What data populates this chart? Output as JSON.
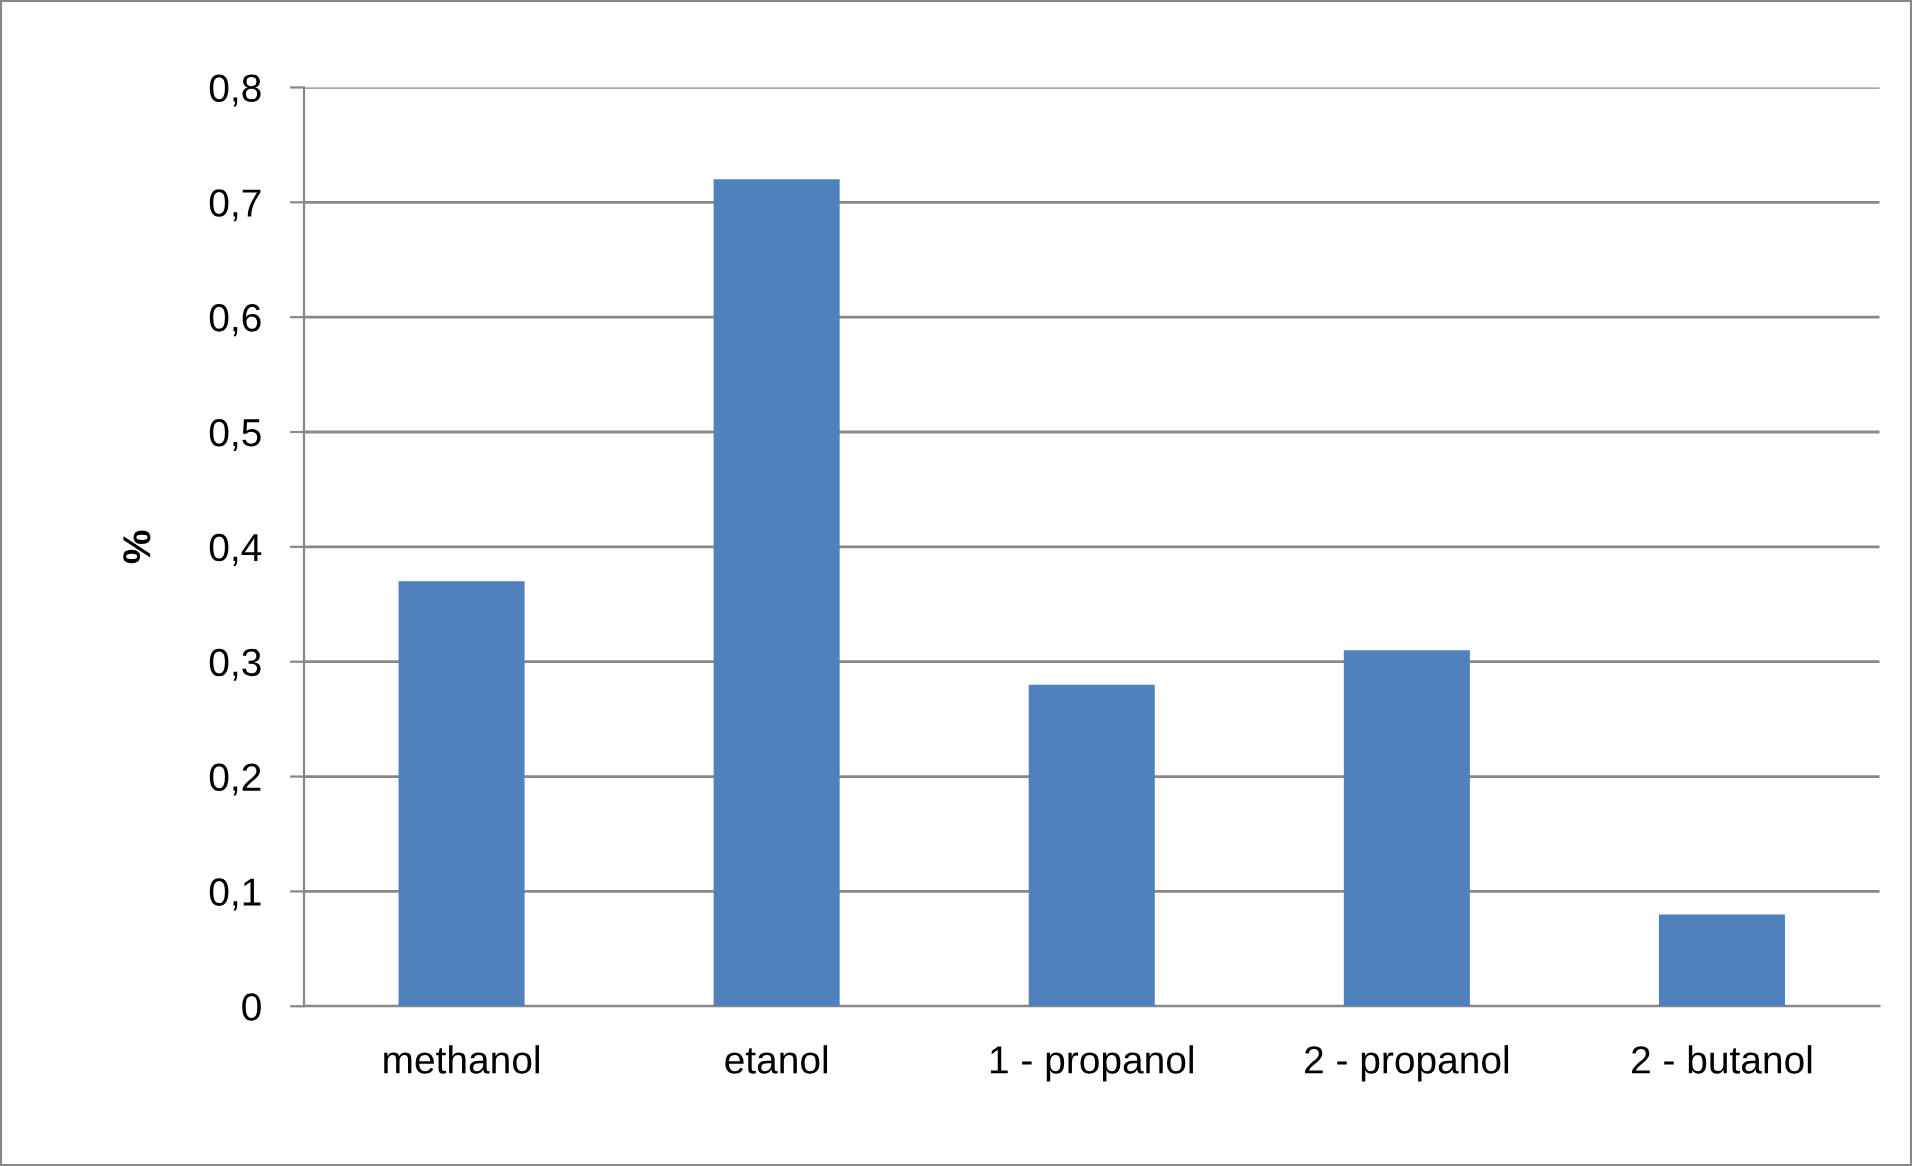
{
  "chart_data": {
    "type": "bar",
    "ylabel": "%",
    "categories": [
      "methanol",
      "etanol",
      "1 - propanol",
      "2 - propanol",
      "2 - butanol"
    ],
    "values": [
      0.37,
      0.72,
      0.28,
      0.31,
      0.08
    ],
    "color": "#4f81bd",
    "ylim": [
      0,
      0.8
    ],
    "yticks": [
      0,
      {
        "value": 0.1,
        "label": "0,1"
      },
      {
        "value": 0.2,
        "label": "0,2"
      },
      {
        "value": 0.3,
        "label": "0,3"
      },
      {
        "value": 0.4,
        "label": "0,4"
      },
      {
        "value": 0.5,
        "label": "0,5"
      },
      {
        "value": 0.6,
        "label": "0,6"
      },
      {
        "value": 0.7,
        "label": "0,7"
      },
      {
        "value": 0.8,
        "label": "0,8"
      }
    ],
    "grid": "y"
  }
}
